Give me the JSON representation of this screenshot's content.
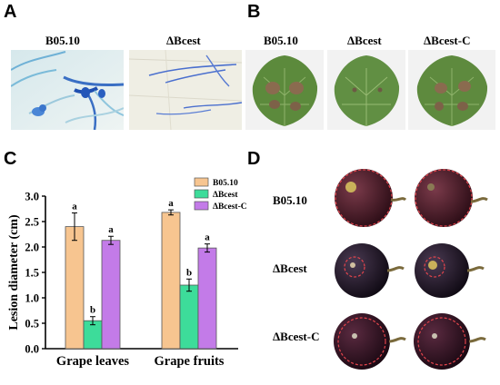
{
  "panels": {
    "A": {
      "letter": "A",
      "labels": [
        "B05.10",
        "ΔBcest"
      ]
    },
    "B": {
      "letter": "B",
      "labels": [
        "B05.10",
        "ΔBcest",
        "ΔBcest-C"
      ]
    },
    "C": {
      "letter": "C"
    },
    "D": {
      "letter": "D",
      "row_labels": [
        "B05.10",
        "ΔBcest",
        "ΔBcest-C"
      ]
    }
  },
  "chart_data": {
    "type": "bar",
    "categories": [
      "Grape leaves",
      "Grape fruits"
    ],
    "ylabel": "Lesion diameter (cm)",
    "ylim": [
      0,
      3.0
    ],
    "yticks": [
      "0.0",
      "0.5",
      "1.0",
      "1.5",
      "2.0",
      "2.5",
      "3.0"
    ],
    "legend_placement": "top-right",
    "series": [
      {
        "name": "B05.10",
        "color": "#f7c590",
        "values": [
          2.4,
          2.68
        ],
        "errors": [
          0.27,
          0.05
        ],
        "letters": [
          "a",
          "a"
        ]
      },
      {
        "name": "ΔBcest",
        "color": "#3ddc9a",
        "values": [
          0.55,
          1.25
        ],
        "errors": [
          0.08,
          0.12
        ],
        "letters": [
          "b",
          "b"
        ]
      },
      {
        "name": "ΔBcest-C",
        "color": "#c37be8",
        "values": [
          2.13,
          1.98
        ],
        "errors": [
          0.08,
          0.08
        ],
        "letters": [
          "a",
          "a"
        ]
      }
    ]
  }
}
